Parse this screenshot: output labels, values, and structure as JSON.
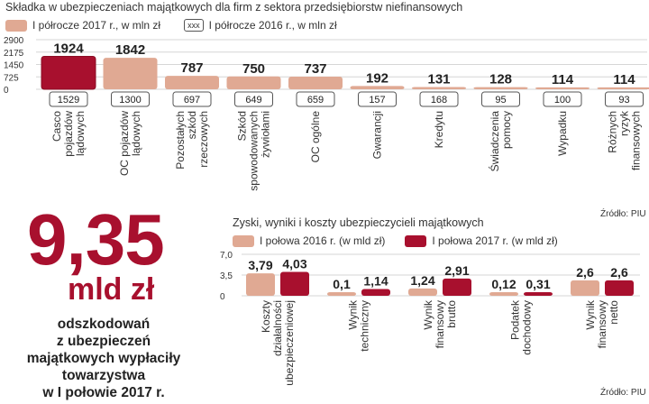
{
  "chart_data": [
    {
      "type": "bar",
      "title": "Składka w ubezpieczeniach majątkowych dla firm z sektora przedsiębiorstw niefinansowych",
      "categories": [
        "Casco pojazdów lądowych",
        "OC pojazdów lądowych",
        "Pozostałych szkód rzeczowych",
        "Szkód spowodowanych żywiołami",
        "OC ogólne",
        "Gwarancji",
        "Kredytu",
        "Świadczenia pomocy",
        "Wypadku",
        "Różnych ryzyk finansowych"
      ],
      "series": [
        {
          "name": "I półrocze 2017 r., w mln zł",
          "values": [
            1924,
            1842,
            787,
            750,
            737,
            192,
            131,
            128,
            114,
            114
          ]
        },
        {
          "name": "I półrocze 2016 r., w mln zł",
          "values": [
            1529,
            1300,
            697,
            649,
            659,
            157,
            168,
            95,
            100,
            93
          ]
        }
      ],
      "legend_sample": "xxx",
      "yticks": [
        "2900",
        "2175",
        "1450",
        "725",
        "0"
      ],
      "ylim": [
        0,
        2900
      ],
      "source": "Źródło: PIU"
    },
    {
      "type": "bar",
      "title": "Zyski, wyniki i koszty ubezpieczycieli majątkowych",
      "categories": [
        "Koszty działalności ubezpieczeniowej",
        "Wynik techniczny",
        "Wynik finansowy brutto",
        "Podatek dochodowy",
        "Wynik finansowy netto"
      ],
      "series": [
        {
          "name": "I połowa 2016 r. (w mld zł)",
          "values": [
            3.79,
            0.1,
            1.24,
            0.12,
            2.6
          ],
          "labels": [
            "3,79",
            "0,1",
            "1,24",
            "0,12",
            "2,6"
          ]
        },
        {
          "name": "I połowa 2017 r. (w mld zł)",
          "values": [
            4.03,
            1.14,
            2.91,
            0.31,
            2.6
          ],
          "labels": [
            "4,03",
            "1,14",
            "2,91",
            "0,31",
            "2,6"
          ]
        }
      ],
      "yticks": [
        "7,0",
        "3,5",
        "0"
      ],
      "ylim": [
        0,
        7
      ],
      "source": "Źródło: PIU"
    }
  ],
  "callout": {
    "number": "9,35",
    "unit": "mld zł",
    "description": [
      "odszkodowań",
      "z ubezpieczeń",
      "majątkowych wypłaciły",
      "towarzystwa",
      "w I połowie 2017 r."
    ]
  },
  "colors": {
    "light": "#e0a993",
    "dark": "#a8102e",
    "grid": "#d6d6d6"
  }
}
